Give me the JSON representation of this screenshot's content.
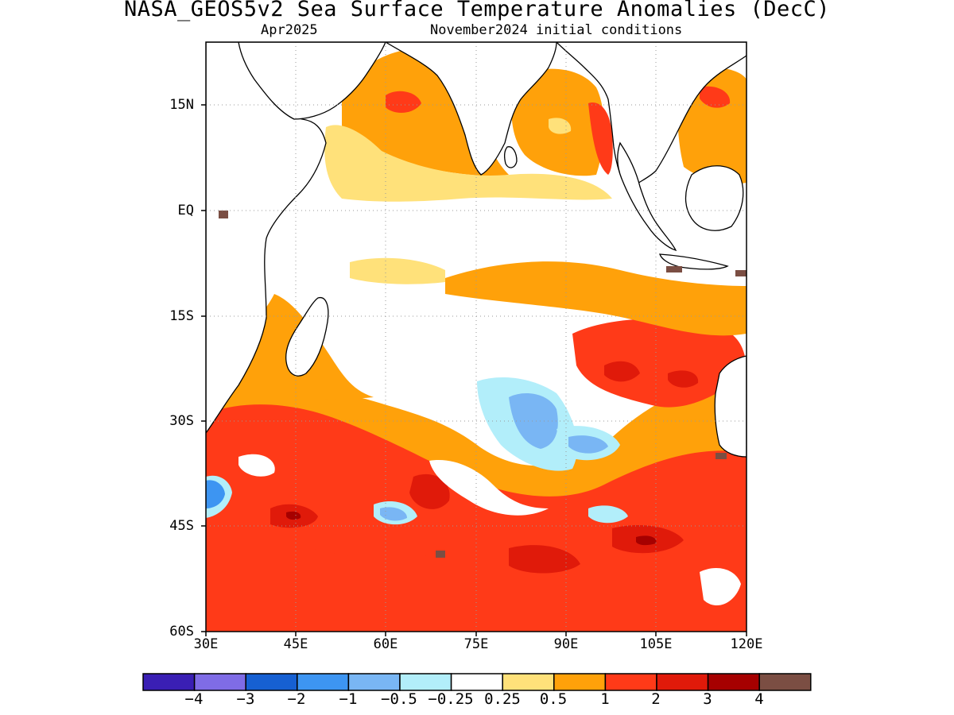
{
  "header": {
    "title": "NASA_GEOS5v2 Sea Surface Temperature Anomalies (DecC)",
    "forecast_month": "Apr2025",
    "initial_conditions": "November2024 initial conditions"
  },
  "map": {
    "region": "Indian Ocean",
    "projection": "cylindrical equidistant",
    "lon_range": [
      30,
      120
    ],
    "lat_range": [
      -60,
      24
    ],
    "lat_ticks": [
      {
        "value": 15,
        "label": "15N"
      },
      {
        "value": 0,
        "label": "EQ"
      },
      {
        "value": -15,
        "label": "15S"
      },
      {
        "value": -30,
        "label": "30S"
      },
      {
        "value": -45,
        "label": "45S"
      },
      {
        "value": -60,
        "label": "60S"
      }
    ],
    "lon_ticks": [
      {
        "value": 30,
        "label": "30E"
      },
      {
        "value": 45,
        "label": "45E"
      },
      {
        "value": 60,
        "label": "60E"
      },
      {
        "value": 75,
        "label": "75E"
      },
      {
        "value": 90,
        "label": "90E"
      },
      {
        "value": 105,
        "label": "105E"
      },
      {
        "value": 120,
        "label": "120E"
      }
    ],
    "grid": "dotted"
  },
  "colorbar": {
    "colors": [
      "#3a1fb4",
      "#7f6ce6",
      "#1660d2",
      "#3d95f2",
      "#79b6f4",
      "#b2eefa",
      "#ffffff",
      "#ffe17a",
      "#ffa10a",
      "#ff3a18",
      "#e01a0a",
      "#a60000",
      "#7b4e43"
    ],
    "labels": [
      "−4",
      "−3",
      "−2",
      "−1",
      "−0.5",
      "−0.25",
      "0.25",
      "0.5",
      "1",
      "2",
      "3",
      "4"
    ]
  }
}
